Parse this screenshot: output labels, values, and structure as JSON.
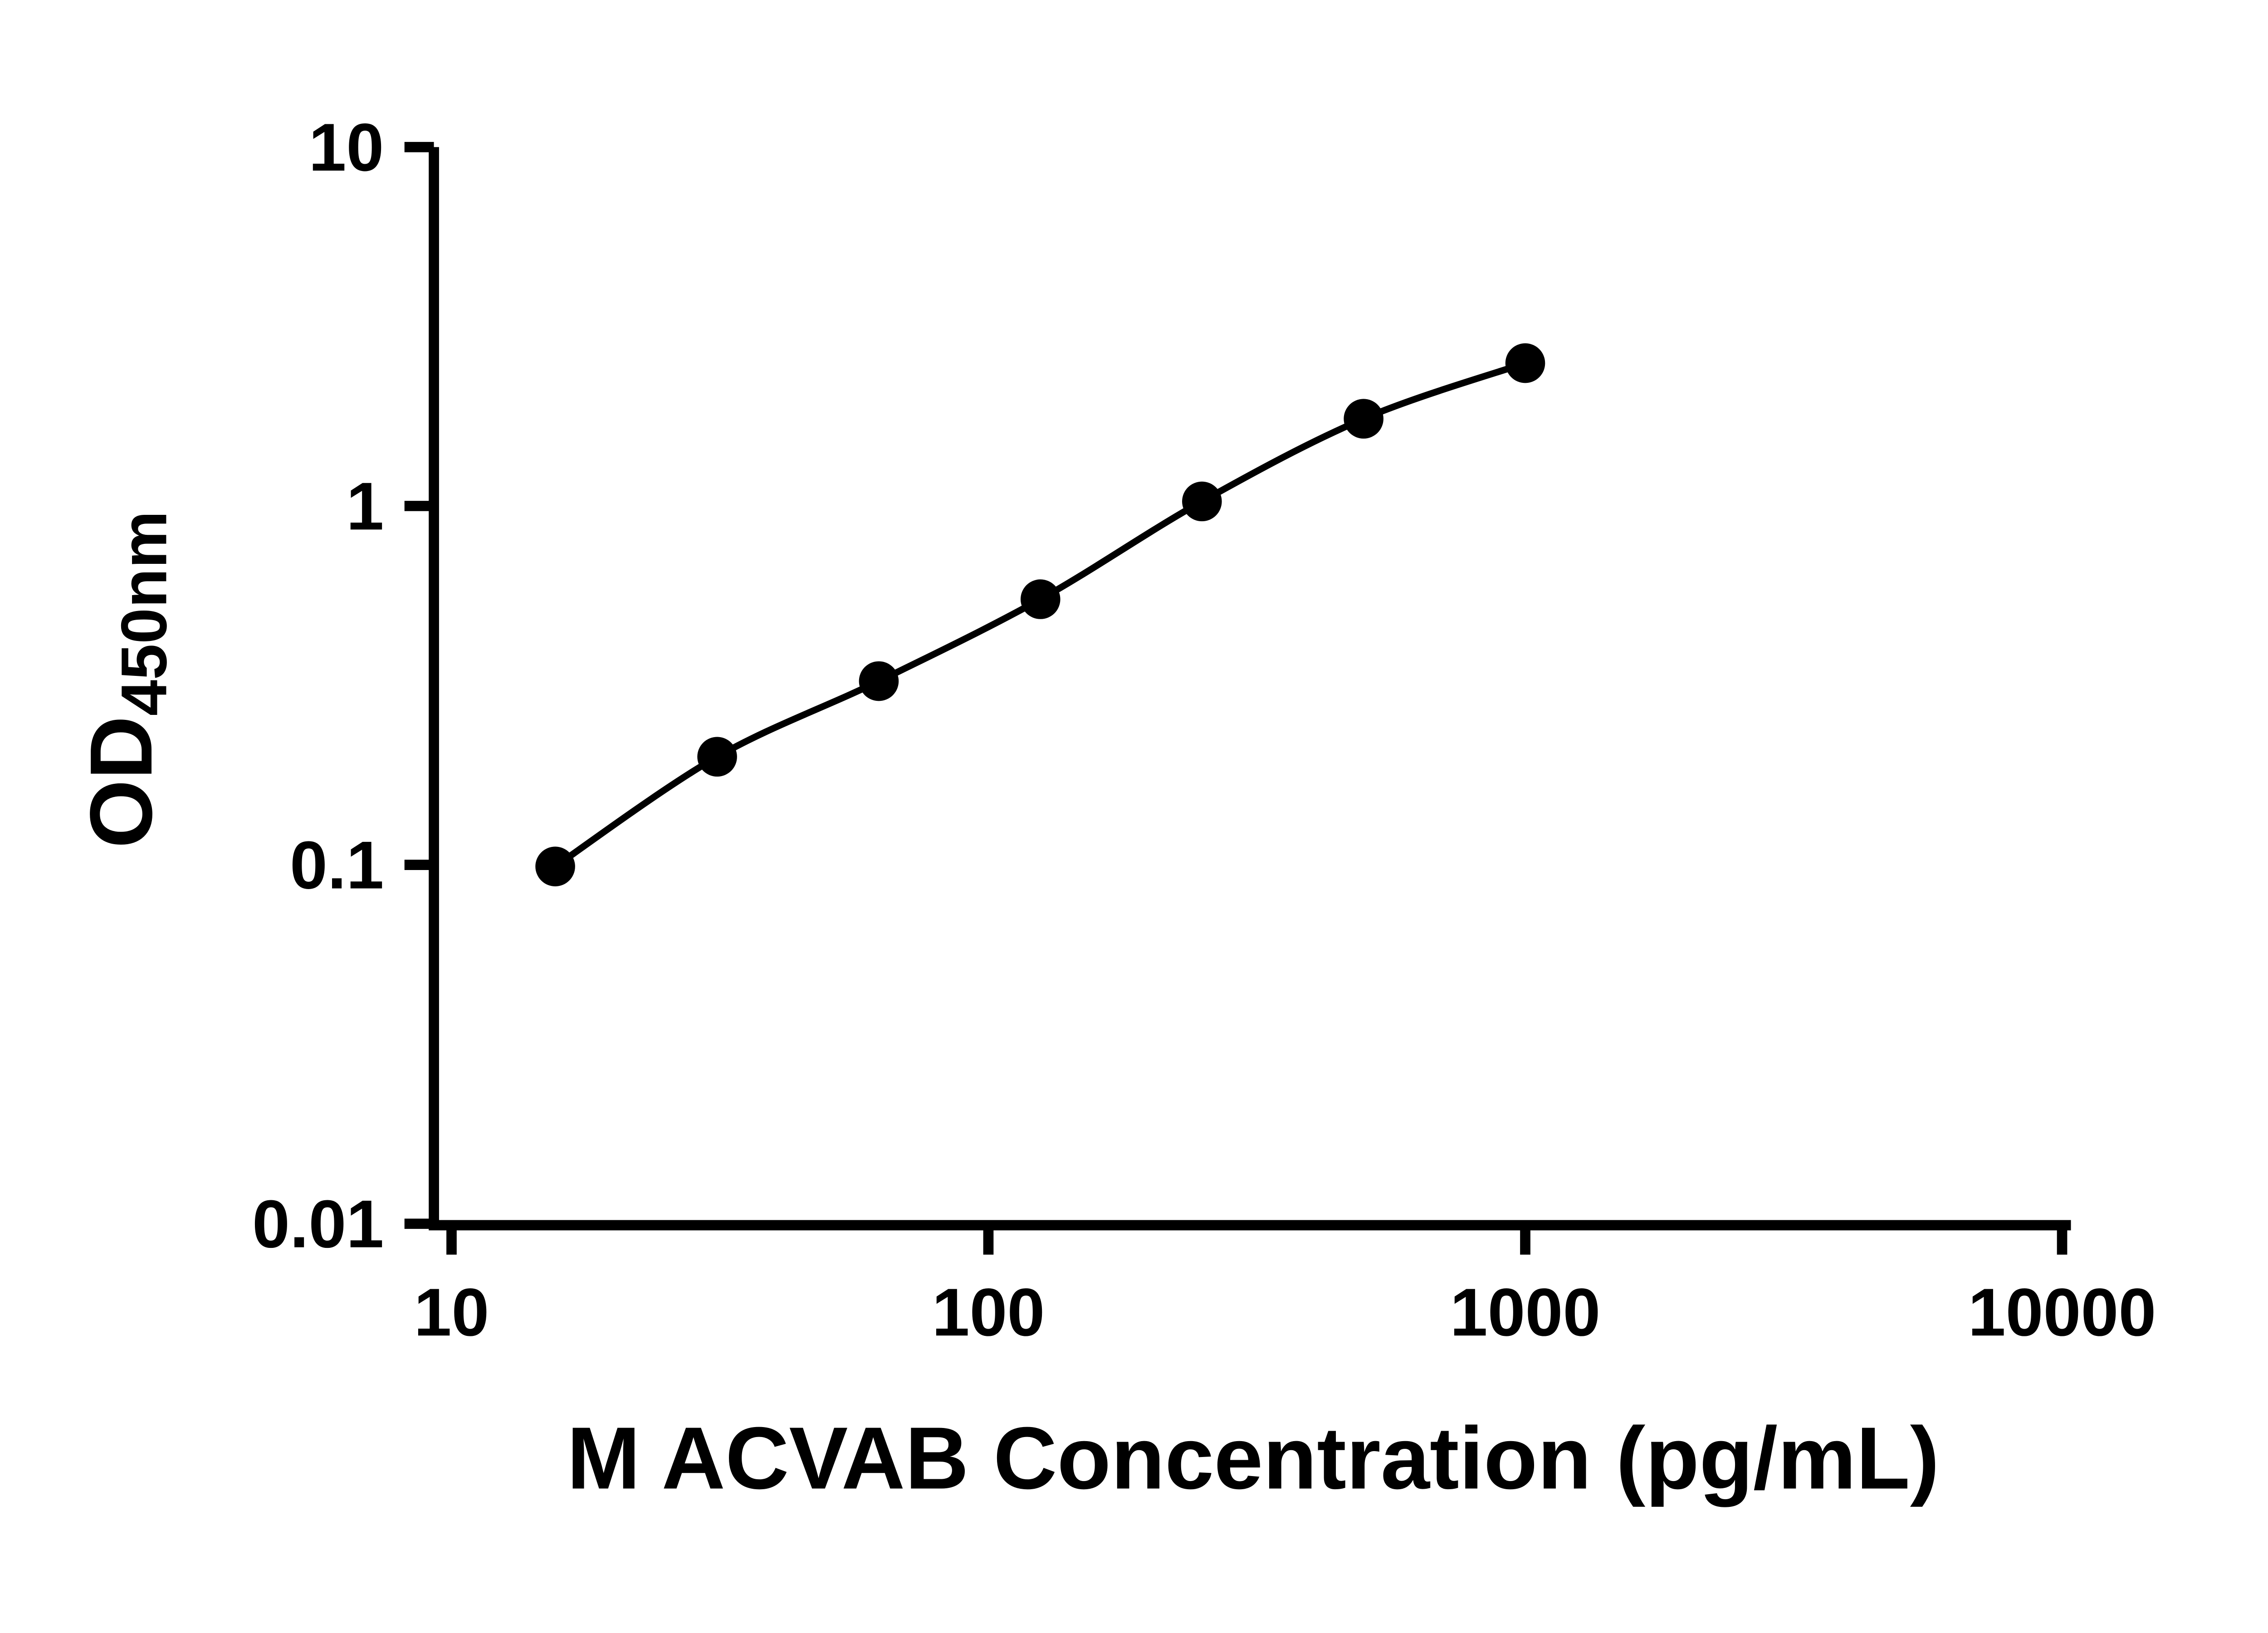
{
  "chart_data": {
    "type": "scatter",
    "x": [
      15.6,
      31.25,
      62.5,
      125,
      250,
      500,
      1000
    ],
    "y": [
      0.099,
      0.2,
      0.325,
      0.55,
      1.03,
      1.75,
      2.5
    ],
    "x_scale": "log",
    "y_scale": "log",
    "xlim": [
      10,
      10000
    ],
    "ylim": [
      0.01,
      10
    ],
    "x_ticks": [
      10,
      100,
      1000,
      10000
    ],
    "x_tick_labels": [
      "10",
      "100",
      "1000",
      "10000"
    ],
    "y_ticks": [
      0.01,
      0.1,
      1,
      10
    ],
    "y_tick_labels": [
      "0.01",
      "0.1",
      "1",
      "10"
    ],
    "xlabel": "M ACVAB Concentration (pg/mL)",
    "ylabel_main": "OD",
    "ylabel_sub": "450nm",
    "curve": "smooth",
    "grid": false,
    "legend": null,
    "marker_color": "#000000",
    "line_color": "#000000",
    "axis_color": "#000000",
    "background": "#ffffff"
  }
}
